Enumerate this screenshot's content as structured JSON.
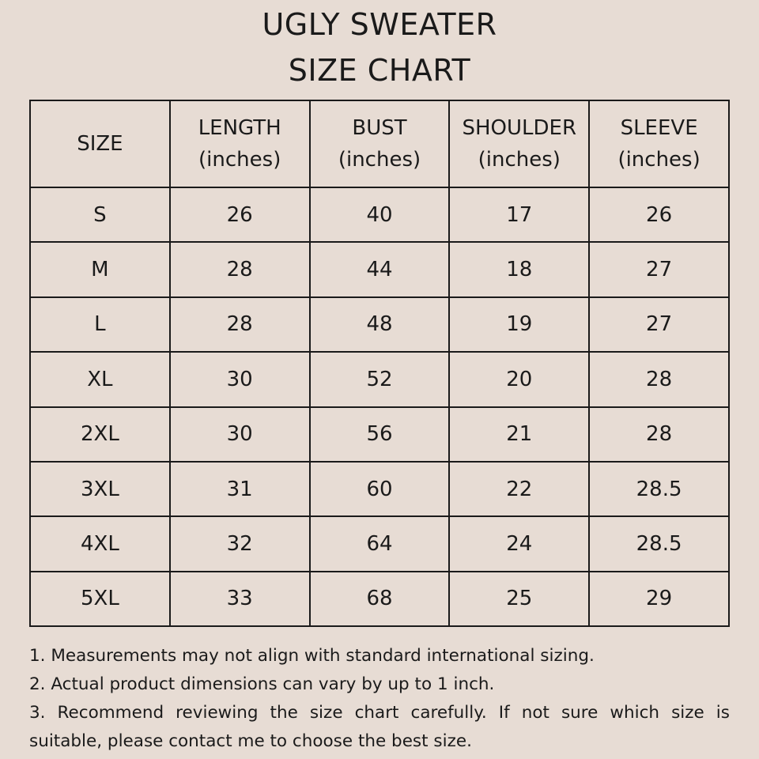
{
  "title": {
    "line1": "UGLY SWEATER",
    "line2": "SIZE CHART"
  },
  "table": {
    "headers": [
      {
        "label": "SIZE",
        "unit": ""
      },
      {
        "label": "LENGTH",
        "unit": "(inches)"
      },
      {
        "label": "BUST",
        "unit": "(inches)"
      },
      {
        "label": "SHOULDER",
        "unit": "(inches)"
      },
      {
        "label": "SLEEVE",
        "unit": "(inches)"
      }
    ],
    "rows": [
      [
        "S",
        "26",
        "40",
        "17",
        "26"
      ],
      [
        "M",
        "28",
        "44",
        "18",
        "27"
      ],
      [
        "L",
        "28",
        "48",
        "19",
        "27"
      ],
      [
        "XL",
        "30",
        "52",
        "20",
        "28"
      ],
      [
        "2XL",
        "30",
        "56",
        "21",
        "28"
      ],
      [
        "3XL",
        "31",
        "60",
        "22",
        "28.5"
      ],
      [
        "4XL",
        "32",
        "64",
        "24",
        "28.5"
      ],
      [
        "5XL",
        "33",
        "68",
        "25",
        "29"
      ]
    ]
  },
  "notes": [
    "1. Measurements may not align with standard international sizing.",
    "2. Actual product dimensions can vary by up to 1 inch.",
    "3. Recommend reviewing the size chart carefully. If not sure which size is suitable, please contact me to choose the best size."
  ],
  "colors": {
    "background": "#e7dcd4",
    "text": "#1a1a1a"
  }
}
